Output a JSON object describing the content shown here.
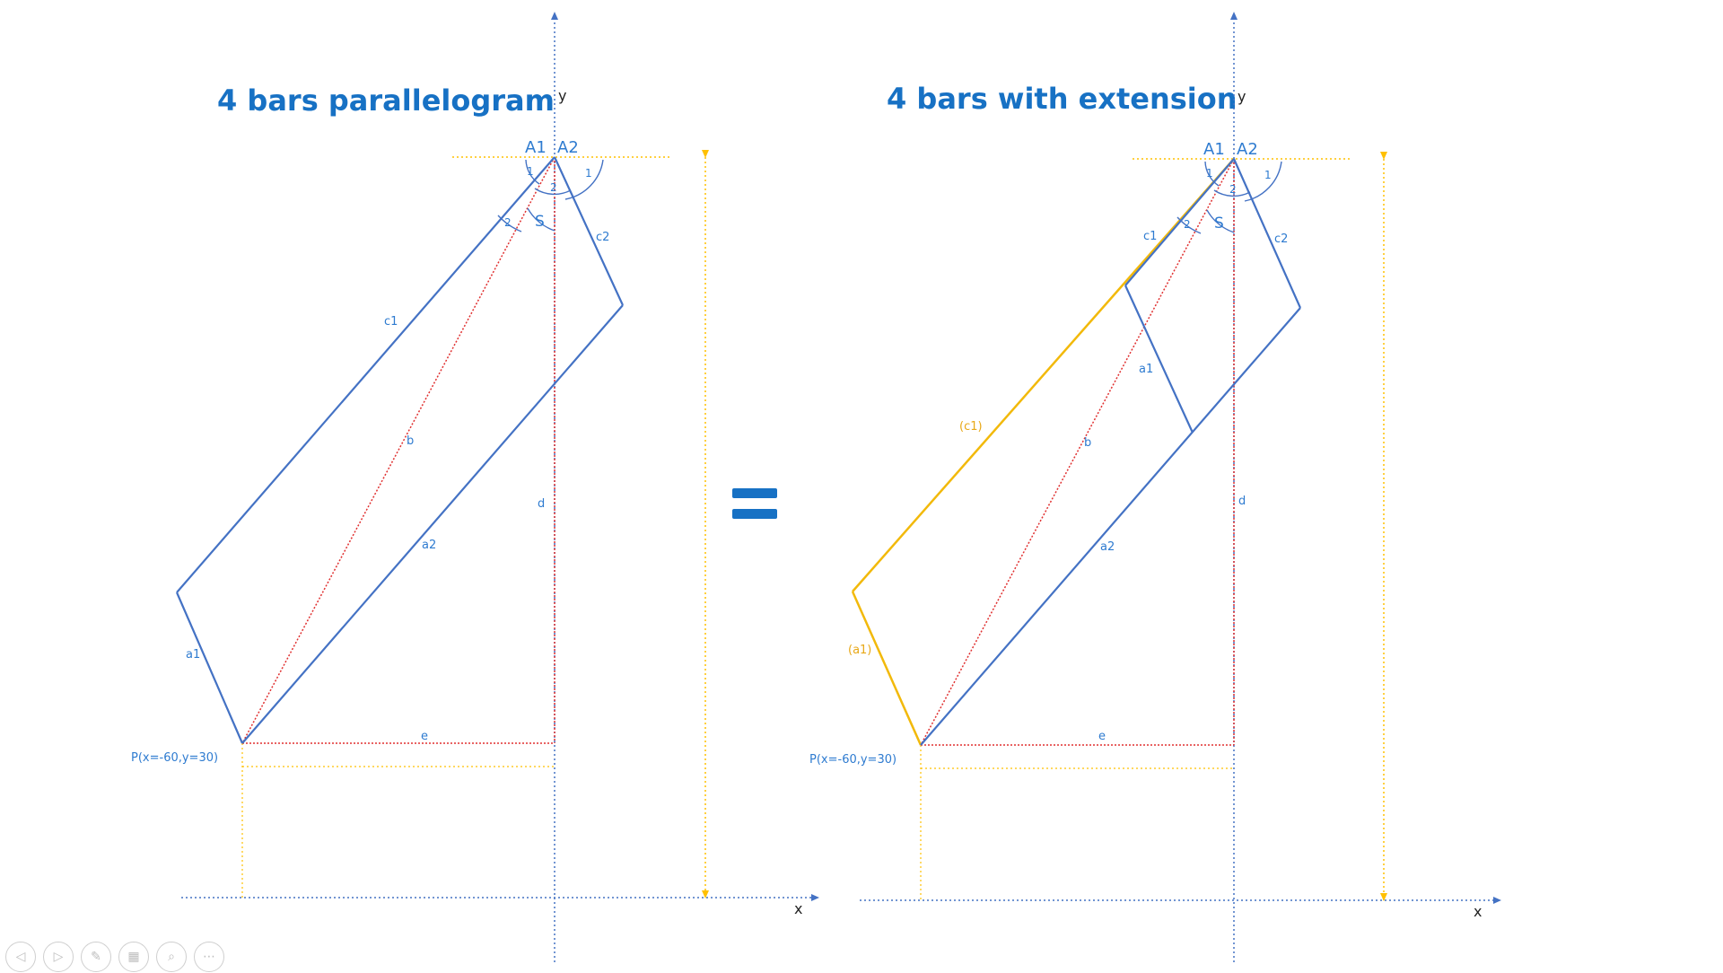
{
  "left_diagram": {
    "title": "4 bars parallelogram",
    "point_label": "P(x=-60,y=30)",
    "labels": {
      "A1": "A1",
      "A2": "A2",
      "c1": "c1",
      "c2": "c2",
      "a1": "a1",
      "a2": "a2",
      "b": "b",
      "d": "d",
      "e": "e",
      "S": "S",
      "x": "x",
      "y": "y"
    },
    "angles": [
      "1",
      "1",
      "2",
      "2"
    ]
  },
  "right_diagram": {
    "title": "4 bars with extension",
    "point_label": "P(x=-60,y=30)",
    "labels": {
      "A1": "A1",
      "A2": "A2",
      "c1": "c1",
      "c2": "c2",
      "a1": "a1",
      "a2": "a2",
      "b": "b",
      "d": "d",
      "e": "e",
      "S": "S",
      "x": "x",
      "y": "y",
      "c1_ext": "(c1)",
      "a1_ext": "(a1)"
    },
    "angles": [
      "1",
      "1",
      "2",
      "2"
    ]
  },
  "equals_sign": "=",
  "colors": {
    "link_blue": "#4472c4",
    "text_blue": "#1771c4",
    "dotted_red": "#e03030",
    "guide_yellow": "#ffc000",
    "extension_yellow": "#f2b90a"
  },
  "toolbar": {
    "buttons": [
      {
        "name": "previous-slide-icon",
        "glyph": "◁"
      },
      {
        "name": "next-slide-icon",
        "glyph": "▷"
      },
      {
        "name": "pen-icon",
        "glyph": "✎"
      },
      {
        "name": "slides-grid-icon",
        "glyph": "▦"
      },
      {
        "name": "zoom-icon",
        "glyph": "⌕"
      },
      {
        "name": "more-options-icon",
        "glyph": "⋯"
      }
    ]
  }
}
